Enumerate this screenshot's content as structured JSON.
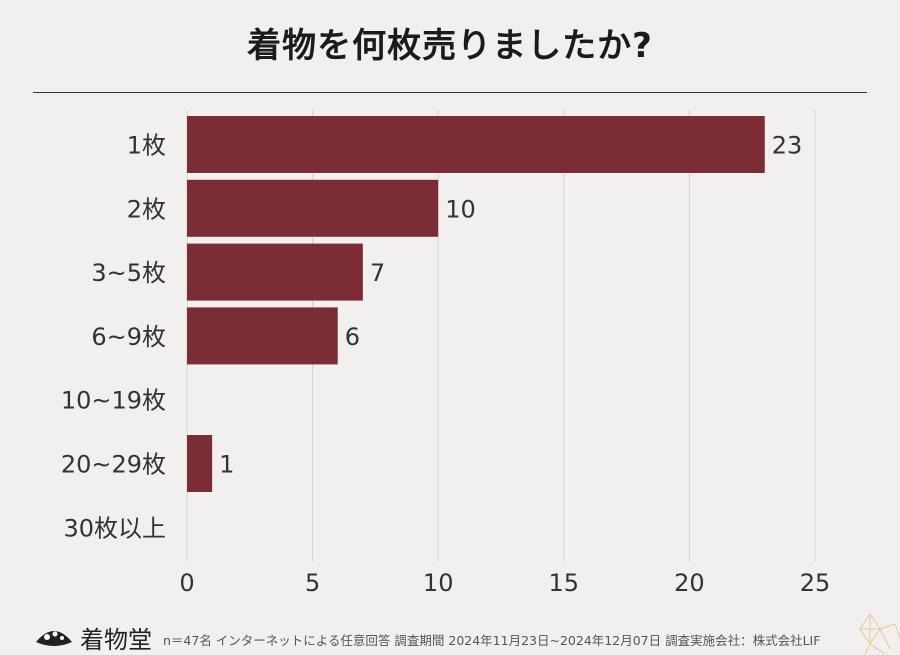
{
  "title": "着物を何枚売りましたか?",
  "footer": {
    "logo_text": "着物堂",
    "note": "n＝47名 インターネットによる任意回答 調査期間  2024年11月23日~2024年12月07日 調査実施会社：株式会社LIF"
  },
  "colors": {
    "bar": "#7c2d33",
    "grid": "#d6d4d1",
    "axis_text": "#333333"
  },
  "chart_data": {
    "type": "bar",
    "orientation": "horizontal",
    "categories": [
      "1枚",
      "2枚",
      "3~5枚",
      "6~9枚",
      "10~19枚",
      "20~29枚",
      "30枚以上"
    ],
    "values": [
      23,
      10,
      7,
      6,
      0,
      1,
      0
    ],
    "data_labels": [
      "23",
      "10",
      "7",
      "6",
      "",
      "1",
      ""
    ],
    "xlim": [
      0,
      25
    ],
    "xticks": [
      0,
      5,
      10,
      15,
      20,
      25
    ],
    "grid": true
  }
}
